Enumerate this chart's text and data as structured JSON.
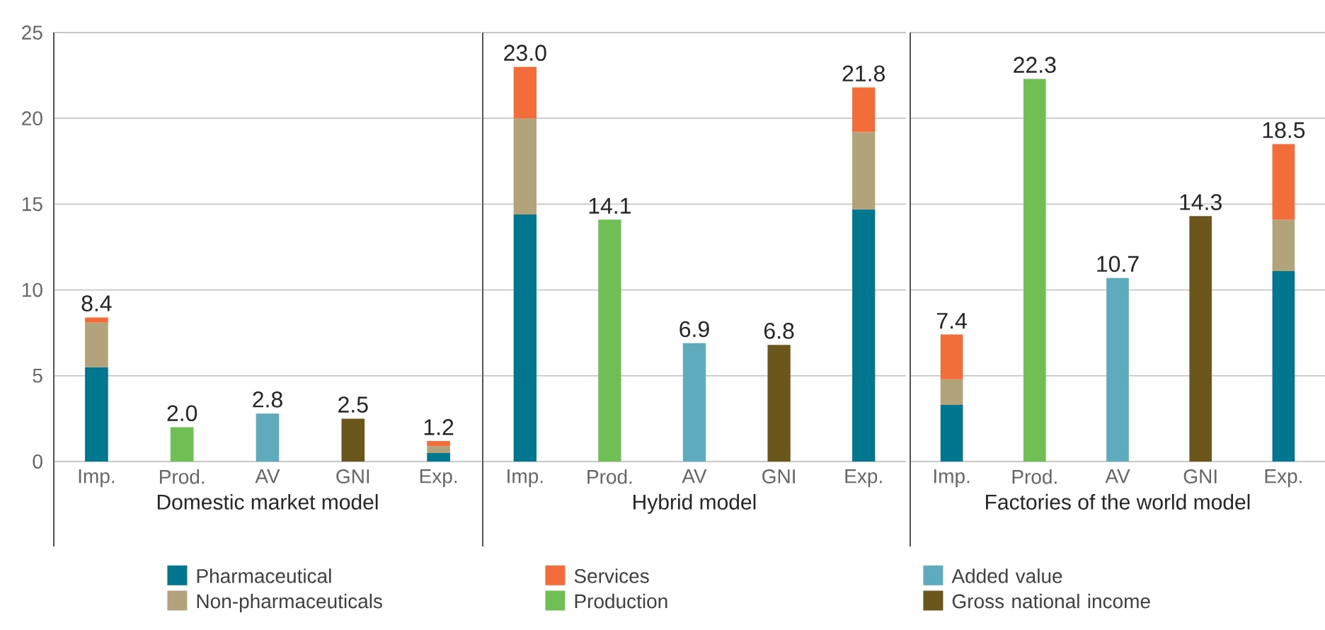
{
  "chart_data": [
    {
      "type": "bar",
      "stacked": true,
      "xlabel": "Domestic market model",
      "categories": [
        "Imp.",
        "Prod.",
        "AV",
        "GNI",
        "Exp."
      ],
      "ylim": [
        0,
        25
      ],
      "yticks": [
        0,
        5,
        10,
        15,
        20,
        25
      ],
      "grid": "y",
      "legend": "bottom",
      "totals": [
        "8.4",
        "2.0",
        "2.8",
        "2.5",
        "1.2"
      ],
      "series": [
        {
          "name": "Pharmaceutical",
          "color": "#00778f",
          "values": [
            5.5,
            null,
            null,
            null,
            0.5
          ]
        },
        {
          "name": "Non-pharmaceuticals",
          "color": "#b3a37a",
          "values": [
            2.6,
            null,
            null,
            null,
            0.4
          ]
        },
        {
          "name": "Services",
          "color": "#f26d3a",
          "values": [
            0.3,
            null,
            null,
            null,
            0.3
          ]
        },
        {
          "name": "Production",
          "color": "#70bf54",
          "values": [
            null,
            2.0,
            null,
            null,
            null
          ]
        },
        {
          "name": "Added value",
          "color": "#5eabbd",
          "values": [
            null,
            null,
            2.8,
            null,
            null
          ]
        },
        {
          "name": "Gross national income",
          "color": "#6b561c",
          "values": [
            null,
            null,
            null,
            2.5,
            null
          ]
        }
      ]
    },
    {
      "type": "bar",
      "stacked": true,
      "xlabel": "Hybrid model",
      "categories": [
        "Imp.",
        "Prod.",
        "AV",
        "GNI",
        "Exp."
      ],
      "ylim": [
        0,
        25
      ],
      "yticks": [
        0,
        5,
        10,
        15,
        20,
        25
      ],
      "grid": "y",
      "tick_labels": "x",
      "totals": [
        "23.0",
        "14.1",
        "6.9",
        "6.8",
        "21.8"
      ],
      "series": [
        {
          "color": "#00778f",
          "values": [
            14.4,
            null,
            null,
            null,
            14.7
          ]
        },
        {
          "color": "#b3a37a",
          "values": [
            5.6,
            null,
            null,
            null,
            4.5
          ]
        },
        {
          "color": "#f26d3a",
          "values": [
            3.0,
            null,
            null,
            null,
            2.6
          ]
        },
        {
          "color": "#70bf54",
          "values": [
            null,
            14.1,
            null,
            null,
            null
          ]
        },
        {
          "color": "#5eabbd",
          "values": [
            null,
            null,
            6.9,
            null,
            null
          ]
        },
        {
          "color": "#6b561c",
          "values": [
            null,
            null,
            null,
            6.8,
            null
          ]
        }
      ]
    },
    {
      "type": "bar",
      "stacked": true,
      "xlabel": "Factories of the world model",
      "categories": [
        "Imp.",
        "Prod.",
        "AV",
        "GNI",
        "Exp."
      ],
      "ylim": [
        0,
        25
      ],
      "yticks": [
        0,
        5,
        10,
        15,
        20,
        25
      ],
      "grid": "y",
      "tick_labels": "x",
      "totals": [
        "7.4",
        "22.3",
        "10.7",
        "14.3",
        "18.5"
      ],
      "series": [
        {
          "color": "#00778f",
          "values": [
            3.3,
            null,
            null,
            null,
            11.1
          ]
        },
        {
          "color": "#b3a37a",
          "values": [
            1.5,
            null,
            null,
            null,
            3.0
          ]
        },
        {
          "color": "#f26d3a",
          "values": [
            2.6,
            null,
            null,
            null,
            4.4
          ]
        },
        {
          "color": "#70bf54",
          "values": [
            null,
            22.3,
            null,
            null,
            null
          ]
        },
        {
          "color": "#5eabbd",
          "values": [
            null,
            null,
            10.7,
            null,
            null
          ]
        },
        {
          "color": "#6b561c",
          "values": [
            null,
            null,
            null,
            14.3,
            null
          ]
        }
      ]
    }
  ]
}
